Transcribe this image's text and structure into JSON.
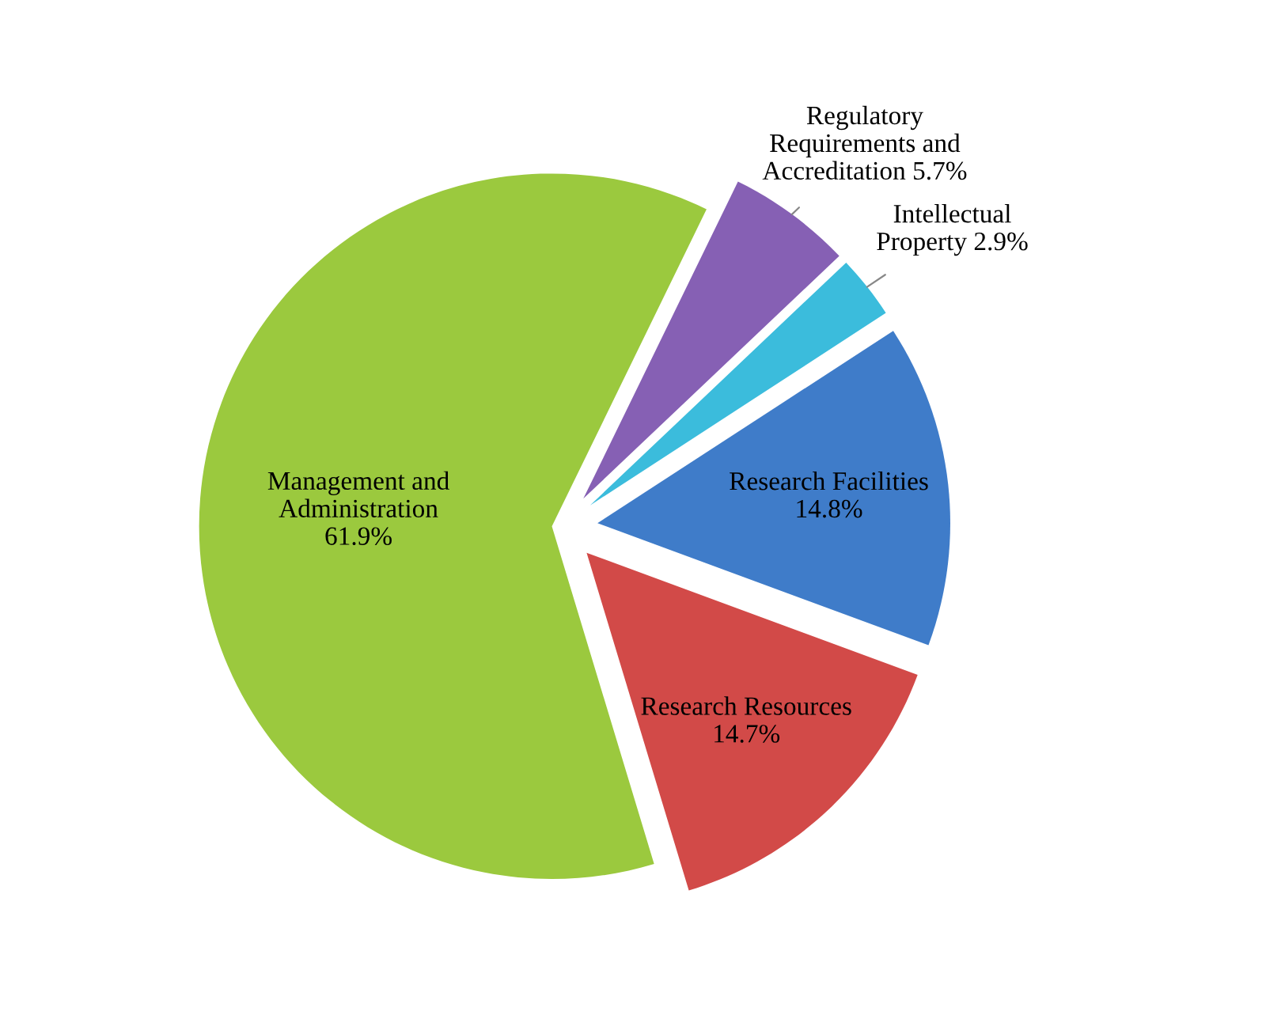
{
  "chart_data": {
    "type": "pie",
    "categories": [
      "Management and\nAdministration",
      "Research Resources",
      "Research Facilities",
      "Intellectual\nProperty",
      "Regulatory\nRequirements and\nAccreditation"
    ],
    "values": [
      61.9,
      14.7,
      14.8,
      2.9,
      5.7
    ],
    "value_labels": [
      "61.9%",
      "14.7%",
      "14.8%",
      "2.9%",
      "5.7%"
    ],
    "colors": [
      "#9bc93e",
      "#d24a48",
      "#3f7cc9",
      "#3bbcdc",
      "#8660b4"
    ]
  }
}
